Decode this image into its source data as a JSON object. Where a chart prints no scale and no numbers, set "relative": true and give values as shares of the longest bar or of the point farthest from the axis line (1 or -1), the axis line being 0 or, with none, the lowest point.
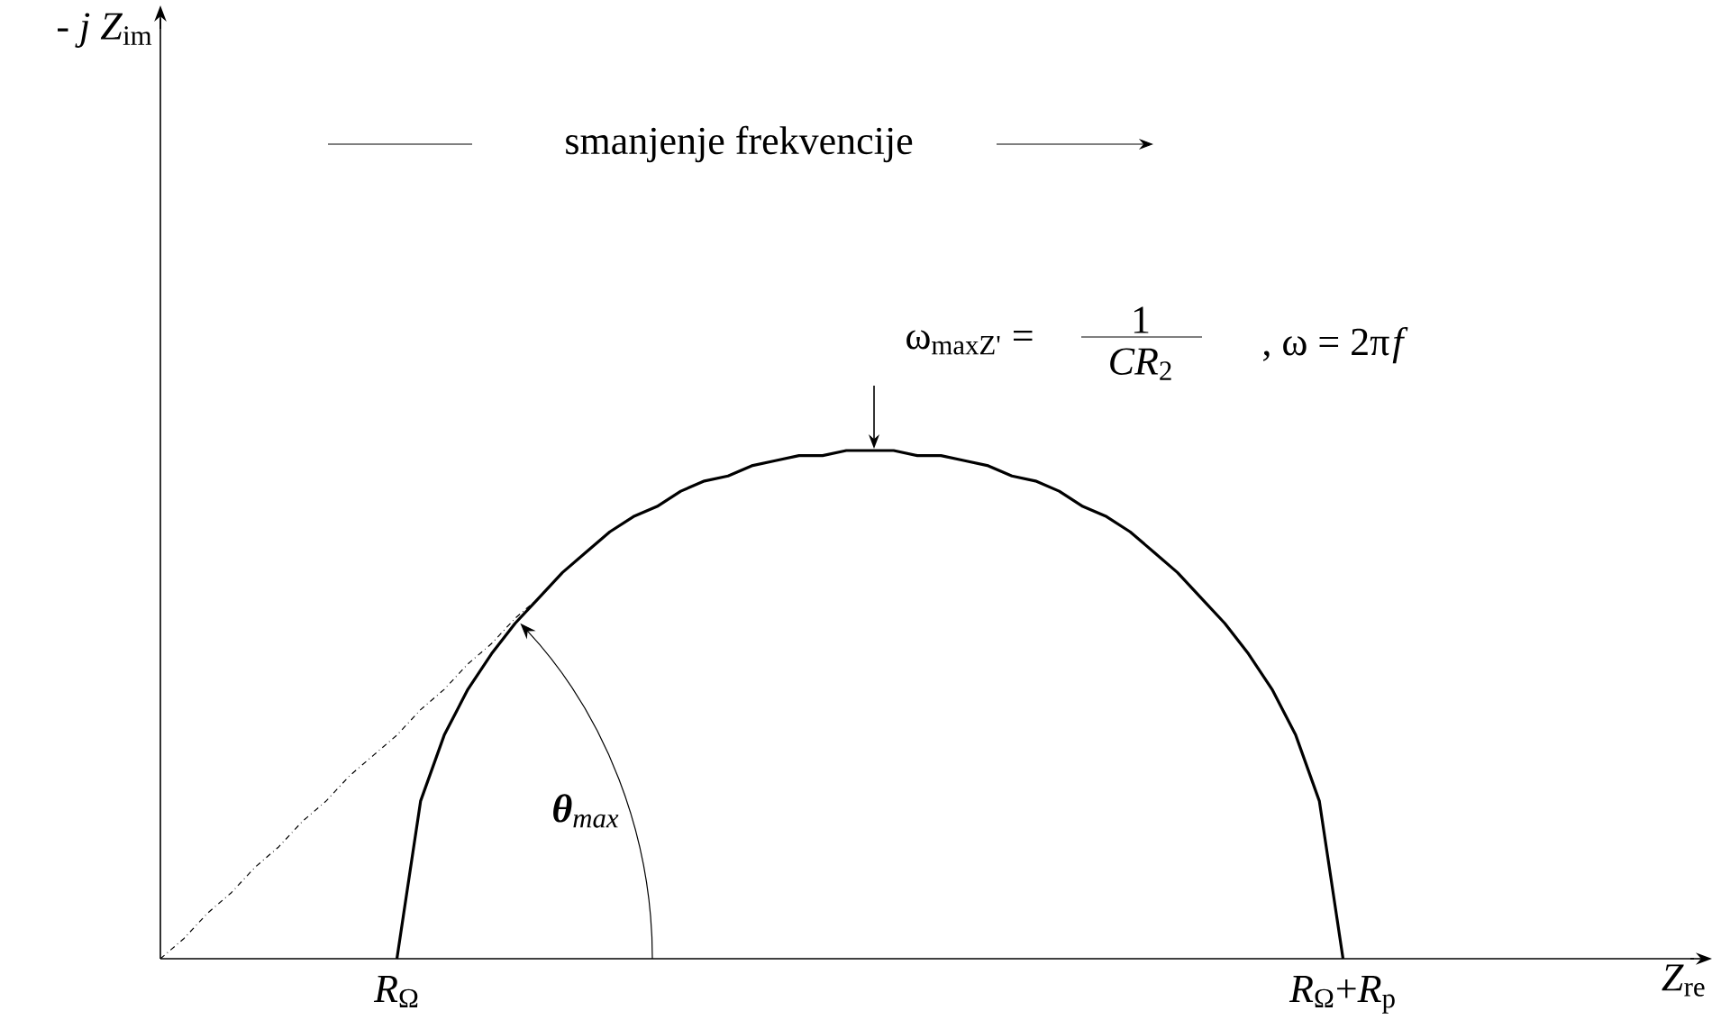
{
  "chart_data": {
    "type": "line",
    "relative": true,
    "marker": "none",
    "xlabel": "*Z*$_{re}$",
    "categories": [
      null,
      null,
      null,
      null,
      null,
      null,
      null,
      null,
      null,
      null,
      "*R*$_{Ω}$",
      null,
      null,
      null,
      null,
      null,
      null,
      null,
      null,
      null,
      null,
      null,
      null,
      null,
      null,
      null,
      null,
      null,
      null,
      null,
      null,
      null,
      null,
      null,
      null,
      null,
      null,
      null,
      null,
      null,
      null,
      null,
      null,
      null,
      null,
      null,
      null,
      null,
      null,
      null,
      "*R*$_{Ω}$+*R*$_{p}$",
      null,
      null,
      null,
      null,
      null,
      null,
      null,
      null,
      null,
      null,
      null,
      null,
      null,
      null,
      null
    ],
    "series": [
      {
        "color": "#000000",
        "line_style": "solid",
        "values": [
          null,
          null,
          null,
          null,
          null,
          null,
          null,
          null,
          null,
          null,
          0,
          0.31,
          0.44,
          0.53,
          0.6,
          0.66,
          0.71,
          0.76,
          0.8,
          0.84,
          0.87,
          0.89,
          0.92,
          0.94,
          0.95,
          0.97,
          0.98,
          0.99,
          0.99,
          1,
          1,
          1,
          0.99,
          0.99,
          0.98,
          0.97,
          0.95,
          0.94,
          0.92,
          0.89,
          0.87,
          0.84,
          0.8,
          0.76,
          0.71,
          0.66,
          0.6,
          0.53,
          0.44,
          0.31,
          0,
          null,
          null,
          null,
          null,
          null,
          null,
          null,
          null,
          null,
          null,
          null,
          null,
          null,
          null,
          null
        ]
      },
      {
        "color": "#000000",
        "line_style": "dashed",
        "values": [
          0,
          0.04,
          0.09,
          0.13,
          0.18,
          0.22,
          0.27,
          0.31,
          0.36,
          0.4,
          0.44,
          0.49,
          0.53,
          0.58,
          0.62,
          0.67,
          0.71,
          null,
          null,
          null,
          null,
          null,
          null,
          null,
          null,
          null,
          null,
          null,
          null,
          null,
          null,
          null,
          null,
          null,
          null,
          null,
          null,
          null,
          null,
          null,
          null,
          null,
          null,
          null,
          null,
          null,
          null,
          null,
          null,
          null,
          null,
          null,
          null,
          null,
          null,
          null,
          null,
          null,
          null,
          null,
          null,
          null,
          null,
          null,
          null,
          null
        ]
      }
    ],
    "annotations": [
      "smanjenje frekvencije",
      "ω$_{maxZ'}$ =",
      "1",
      "*CR*$_{2}$",
      ",  ω = 2π",
      "*f*",
      "**θ**$_{max}$",
      "- *j* *Z*$_{im}$"
    ]
  }
}
